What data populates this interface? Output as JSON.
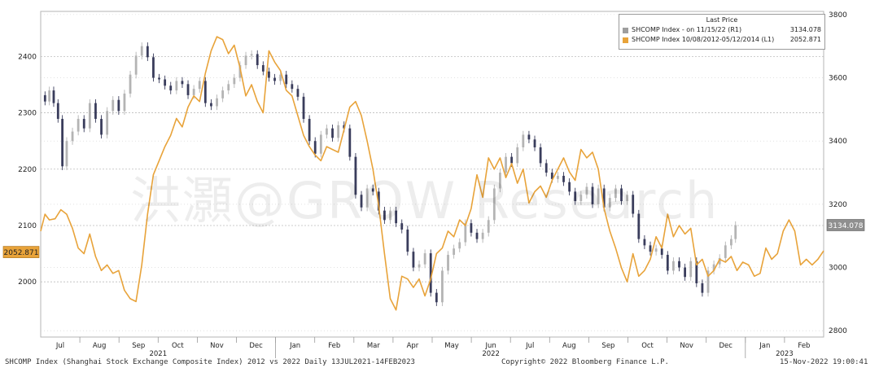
{
  "chart_data": {
    "type": "line",
    "title": "",
    "legend": {
      "placement": "top-right",
      "header": "Last Price",
      "entries": [
        {
          "name": "SHCOMP Index -  on 11/15/22  (R1)",
          "value": "3134.078",
          "color": "#9e9e9e"
        },
        {
          "name": "SHCOMP Index 10/08/2012-05/12/2014  (L1)",
          "value": "2052.871",
          "color": "#e8a33a"
        }
      ]
    },
    "left_axis": {
      "ticks": [
        "2000",
        "2100",
        "2200",
        "2300",
        "2400"
      ],
      "range": [
        1902,
        2480
      ]
    },
    "right_axis": {
      "ticks": [
        "2800",
        "3000",
        "3200",
        "3400",
        "3600",
        "3800"
      ],
      "range": [
        2780,
        3810
      ]
    },
    "x_axis": {
      "months": [
        "Jul",
        "Aug",
        "Sep",
        "Oct",
        "Nov",
        "Dec",
        "Jan",
        "Feb",
        "Mar",
        "Apr",
        "May",
        "Jun",
        "Jul",
        "Aug",
        "Sep",
        "Oct",
        "Nov",
        "Dec",
        "Jan",
        "Feb"
      ],
      "years": [
        "2021",
        "2022",
        "2023"
      ]
    },
    "value_tags": {
      "left": "2052.871",
      "right": "3134.078"
    },
    "grid": true,
    "series": [
      {
        "name": "SHCOMP Index -  on 11/15/22  (R1)",
        "axis": "right",
        "color": "#9e9e9e",
        "style": "candlestick",
        "points": [
          [
            0,
            3545
          ],
          [
            3,
            3525
          ],
          [
            6,
            3560
          ],
          [
            9,
            3520
          ],
          [
            12,
            3470
          ],
          [
            15,
            3320
          ],
          [
            18,
            3400
          ],
          [
            22,
            3430
          ],
          [
            26,
            3470
          ],
          [
            30,
            3440
          ],
          [
            34,
            3520
          ],
          [
            38,
            3470
          ],
          [
            42,
            3420
          ],
          [
            46,
            3495
          ],
          [
            50,
            3530
          ],
          [
            54,
            3495
          ],
          [
            58,
            3550
          ],
          [
            62,
            3610
          ],
          [
            66,
            3670
          ],
          [
            70,
            3700
          ],
          [
            74,
            3665
          ],
          [
            78,
            3600
          ],
          [
            82,
            3595
          ],
          [
            86,
            3575
          ],
          [
            90,
            3560
          ],
          [
            94,
            3590
          ],
          [
            98,
            3580
          ],
          [
            102,
            3545
          ],
          [
            106,
            3565
          ],
          [
            110,
            3590
          ],
          [
            114,
            3520
          ],
          [
            118,
            3510
          ],
          [
            122,
            3535
          ],
          [
            126,
            3560
          ],
          [
            130,
            3580
          ],
          [
            134,
            3600
          ],
          [
            138,
            3640
          ],
          [
            142,
            3670
          ],
          [
            146,
            3675
          ],
          [
            150,
            3640
          ],
          [
            154,
            3620
          ],
          [
            158,
            3600
          ],
          [
            162,
            3590
          ],
          [
            166,
            3610
          ],
          [
            170,
            3580
          ],
          [
            174,
            3565
          ],
          [
            178,
            3540
          ],
          [
            182,
            3470
          ],
          [
            186,
            3400
          ],
          [
            190,
            3360
          ],
          [
            194,
            3420
          ],
          [
            198,
            3440
          ],
          [
            202,
            3410
          ],
          [
            206,
            3450
          ],
          [
            210,
            3440
          ],
          [
            214,
            3350
          ],
          [
            218,
            3230
          ],
          [
            222,
            3190
          ],
          [
            226,
            3250
          ],
          [
            230,
            3240
          ],
          [
            234,
            3180
          ],
          [
            238,
            3150
          ],
          [
            242,
            3180
          ],
          [
            246,
            3140
          ],
          [
            250,
            3120
          ],
          [
            254,
            3050
          ],
          [
            258,
            3000
          ],
          [
            262,
            3010
          ],
          [
            266,
            3045
          ],
          [
            270,
            2920
          ],
          [
            274,
            2890
          ],
          [
            278,
            2990
          ],
          [
            282,
            3040
          ],
          [
            286,
            3060
          ],
          [
            290,
            3080
          ],
          [
            294,
            3140
          ],
          [
            298,
            3110
          ],
          [
            302,
            3090
          ],
          [
            306,
            3110
          ],
          [
            310,
            3150
          ],
          [
            314,
            3250
          ],
          [
            318,
            3300
          ],
          [
            322,
            3350
          ],
          [
            326,
            3330
          ],
          [
            330,
            3380
          ],
          [
            334,
            3420
          ],
          [
            338,
            3405
          ],
          [
            342,
            3380
          ],
          [
            346,
            3330
          ],
          [
            350,
            3300
          ],
          [
            354,
            3280
          ],
          [
            358,
            3290
          ],
          [
            362,
            3270
          ],
          [
            366,
            3240
          ],
          [
            370,
            3210
          ],
          [
            374,
            3230
          ],
          [
            378,
            3255
          ],
          [
            382,
            3200
          ],
          [
            386,
            3250
          ],
          [
            390,
            3190
          ],
          [
            394,
            3220
          ],
          [
            398,
            3250
          ],
          [
            402,
            3210
          ],
          [
            406,
            3230
          ],
          [
            410,
            3170
          ],
          [
            414,
            3090
          ],
          [
            418,
            3070
          ],
          [
            422,
            3050
          ],
          [
            426,
            3060
          ],
          [
            430,
            3040
          ],
          [
            434,
            2990
          ],
          [
            438,
            3020
          ],
          [
            442,
            3000
          ],
          [
            446,
            2970
          ],
          [
            450,
            3020
          ],
          [
            454,
            2950
          ],
          [
            458,
            2920
          ],
          [
            462,
            2990
          ],
          [
            466,
            3010
          ],
          [
            470,
            3030
          ],
          [
            474,
            3070
          ],
          [
            478,
            3090
          ],
          [
            481,
            3134
          ]
        ]
      },
      {
        "name": "SHCOMP Index 10/08/2012-05/12/2014  (L1)",
        "axis": "left",
        "color": "#e8a33a",
        "style": "line",
        "points": [
          [
            0,
            2090
          ],
          [
            3,
            2120
          ],
          [
            6,
            2110
          ],
          [
            10,
            2112
          ],
          [
            14,
            2128
          ],
          [
            18,
            2120
          ],
          [
            22,
            2095
          ],
          [
            26,
            2060
          ],
          [
            30,
            2050
          ],
          [
            34,
            2085
          ],
          [
            38,
            2045
          ],
          [
            42,
            2020
          ],
          [
            46,
            2030
          ],
          [
            50,
            2015
          ],
          [
            54,
            2020
          ],
          [
            58,
            1985
          ],
          [
            62,
            1970
          ],
          [
            66,
            1965
          ],
          [
            70,
            2030
          ],
          [
            74,
            2120
          ],
          [
            78,
            2190
          ],
          [
            82,
            2215
          ],
          [
            86,
            2240
          ],
          [
            90,
            2260
          ],
          [
            94,
            2290
          ],
          [
            98,
            2275
          ],
          [
            102,
            2310
          ],
          [
            106,
            2330
          ],
          [
            110,
            2320
          ],
          [
            114,
            2370
          ],
          [
            118,
            2410
          ],
          [
            122,
            2435
          ],
          [
            126,
            2430
          ],
          [
            130,
            2405
          ],
          [
            134,
            2420
          ],
          [
            138,
            2380
          ],
          [
            142,
            2330
          ],
          [
            146,
            2350
          ],
          [
            150,
            2320
          ],
          [
            154,
            2300
          ],
          [
            158,
            2410
          ],
          [
            162,
            2390
          ],
          [
            166,
            2375
          ],
          [
            170,
            2340
          ],
          [
            174,
            2330
          ],
          [
            178,
            2295
          ],
          [
            182,
            2260
          ],
          [
            186,
            2240
          ],
          [
            190,
            2225
          ],
          [
            194,
            2215
          ],
          [
            198,
            2240
          ],
          [
            202,
            2235
          ],
          [
            206,
            2230
          ],
          [
            210,
            2270
          ],
          [
            214,
            2310
          ],
          [
            218,
            2320
          ],
          [
            222,
            2295
          ],
          [
            226,
            2250
          ],
          [
            230,
            2200
          ],
          [
            234,
            2135
          ],
          [
            238,
            2050
          ],
          [
            242,
            1970
          ],
          [
            246,
            1950
          ],
          [
            250,
            2010
          ],
          [
            254,
            2005
          ],
          [
            258,
            1990
          ],
          [
            262,
            2005
          ],
          [
            266,
            1975
          ],
          [
            270,
            2005
          ],
          [
            274,
            2050
          ],
          [
            278,
            2060
          ],
          [
            282,
            2090
          ],
          [
            286,
            2080
          ],
          [
            290,
            2110
          ],
          [
            294,
            2100
          ],
          [
            298,
            2130
          ],
          [
            302,
            2190
          ],
          [
            306,
            2150
          ],
          [
            310,
            2220
          ],
          [
            314,
            2200
          ],
          [
            318,
            2220
          ],
          [
            322,
            2185
          ],
          [
            326,
            2210
          ],
          [
            330,
            2175
          ],
          [
            334,
            2200
          ],
          [
            338,
            2140
          ],
          [
            342,
            2160
          ],
          [
            346,
            2170
          ],
          [
            350,
            2150
          ],
          [
            354,
            2180
          ],
          [
            358,
            2200
          ],
          [
            362,
            2220
          ],
          [
            366,
            2195
          ],
          [
            370,
            2180
          ],
          [
            374,
            2235
          ],
          [
            378,
            2220
          ],
          [
            382,
            2230
          ],
          [
            386,
            2200
          ],
          [
            390,
            2130
          ],
          [
            394,
            2090
          ],
          [
            398,
            2060
          ],
          [
            402,
            2025
          ],
          [
            406,
            2000
          ],
          [
            410,
            2050
          ],
          [
            414,
            2010
          ],
          [
            418,
            2020
          ],
          [
            422,
            2040
          ],
          [
            426,
            2080
          ],
          [
            430,
            2060
          ],
          [
            434,
            2120
          ],
          [
            438,
            2080
          ],
          [
            442,
            2100
          ],
          [
            446,
            2085
          ],
          [
            450,
            2095
          ],
          [
            454,
            2030
          ],
          [
            458,
            2040
          ],
          [
            462,
            2010
          ],
          [
            466,
            2020
          ],
          [
            470,
            2040
          ],
          [
            474,
            2035
          ],
          [
            478,
            2045
          ],
          [
            482,
            2020
          ],
          [
            486,
            2035
          ],
          [
            490,
            2030
          ],
          [
            494,
            2010
          ],
          [
            498,
            2015
          ],
          [
            502,
            2060
          ],
          [
            506,
            2040
          ],
          [
            510,
            2050
          ],
          [
            514,
            2090
          ],
          [
            518,
            2110
          ],
          [
            522,
            2090
          ],
          [
            526,
            2030
          ],
          [
            530,
            2040
          ],
          [
            534,
            2030
          ],
          [
            538,
            2040
          ],
          [
            542,
            2055
          ]
        ]
      }
    ],
    "watermark": "洪灝@GROW Research"
  },
  "footer": {
    "left": "SHCOMP Index (Shanghai Stock Exchange Composite Index) 2012 vs 2022  Daily 13JUL2021-14FEB2023",
    "center": "Copyright© 2022 Bloomberg Finance L.P.",
    "right": "15-Nov-2022 19:00:41"
  }
}
